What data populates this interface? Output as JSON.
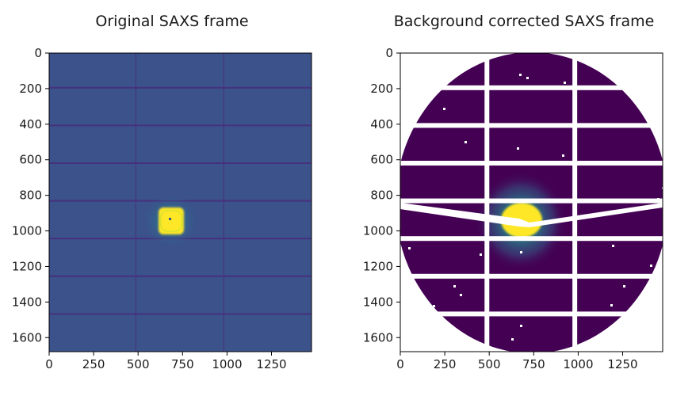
{
  "chart_data": [
    {
      "type": "heatmap",
      "title": "Original SAXS frame",
      "colormap": "viridis",
      "background_color": "#3b528b",
      "xlim": [
        0,
        1475
      ],
      "ylim": [
        1679,
        0
      ],
      "x_ticks": [
        0,
        250,
        500,
        750,
        1000,
        1250
      ],
      "y_ticks": [
        0,
        200,
        400,
        600,
        800,
        1000,
        1200,
        1400,
        1600
      ],
      "module_gaps_y": [
        195,
        407,
        619,
        831,
        1043,
        1255,
        1467
      ],
      "module_gaps_x": [
        487,
        981
      ],
      "beam_center": [
        680,
        945
      ],
      "grid": false
    },
    {
      "type": "heatmap",
      "title": "Background corrected SAXS frame",
      "colormap": "viridis",
      "background_color": "#440154",
      "xlim": [
        0,
        1475
      ],
      "ylim": [
        1679,
        0
      ],
      "x_ticks": [
        0,
        250,
        500,
        750,
        1000,
        1250
      ],
      "y_ticks": [
        0,
        200,
        400,
        600,
        800,
        1000,
        1200,
        1400,
        1600
      ],
      "module_gaps_y": [
        195,
        407,
        619,
        831,
        1043,
        1255,
        1467
      ],
      "module_gaps_x": [
        487,
        981
      ],
      "beam_center": [
        680,
        945
      ],
      "mask": "circular",
      "grid": false
    }
  ]
}
